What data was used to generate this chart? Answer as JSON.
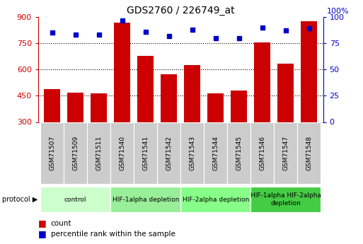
{
  "title": "GDS2760 / 226749_at",
  "samples": [
    "GSM71507",
    "GSM71509",
    "GSM71511",
    "GSM71540",
    "GSM71541",
    "GSM71542",
    "GSM71543",
    "GSM71544",
    "GSM71545",
    "GSM71546",
    "GSM71547",
    "GSM71548"
  ],
  "counts": [
    490,
    468,
    462,
    870,
    680,
    573,
    625,
    463,
    480,
    755,
    635,
    875
  ],
  "percentile_ranks": [
    85,
    83,
    83,
    97,
    86,
    82,
    88,
    80,
    80,
    90,
    87,
    89
  ],
  "ylim_left": [
    300,
    900
  ],
  "ylim_right": [
    0,
    100
  ],
  "yticks_left": [
    300,
    450,
    600,
    750,
    900
  ],
  "yticks_right": [
    0,
    25,
    50,
    75,
    100
  ],
  "bar_color": "#cc0000",
  "dot_color": "#0000cc",
  "label_box_color": "#cccccc",
  "protocol_groups": [
    {
      "label": "control",
      "start": 0,
      "end": 3,
      "color": "#ccffcc"
    },
    {
      "label": "HIF-1alpha depletion",
      "start": 3,
      "end": 6,
      "color": "#99ee99"
    },
    {
      "label": "HIF-2alpha depletion",
      "start": 6,
      "end": 9,
      "color": "#88ff88"
    },
    {
      "label": "HIF-1alpha HIF-2alpha\ndepletion",
      "start": 9,
      "end": 12,
      "color": "#44cc44"
    }
  ]
}
